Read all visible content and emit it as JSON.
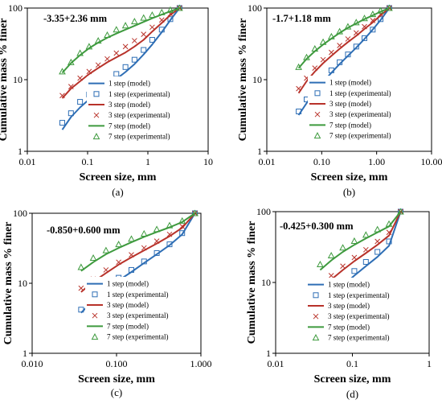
{
  "colors": {
    "one_step": "#2E6EB5",
    "three_step": "#B8322A",
    "seven_step": "#3E9A3E"
  },
  "legend": [
    {
      "label": "1 step (model)",
      "kind": "line",
      "series": "one_step"
    },
    {
      "label": "1 step (experimental)",
      "kind": "square",
      "series": "one_step"
    },
    {
      "label": "3 step (model)",
      "kind": "line",
      "series": "three_step"
    },
    {
      "label": "3 step (experimental)",
      "kind": "cross",
      "series": "three_step"
    },
    {
      "label": "7 step (model)",
      "kind": "line",
      "series": "seven_step"
    },
    {
      "label": "7 step (experimental)",
      "kind": "triangle",
      "series": "seven_step"
    }
  ],
  "chart_data": [
    {
      "type": "line",
      "panel": "(a)",
      "title": "-3.35+2.36 mm",
      "xlabel": "Screen size, mm",
      "ylabel": "Cumulative mass % finer",
      "xscale": "log",
      "yscale": "log",
      "xlim": [
        0.01,
        10
      ],
      "ylim": [
        1,
        100
      ],
      "xticks": [
        "0.01",
        "0.1",
        "1",
        "10"
      ],
      "yticks": [
        "1",
        "10",
        "100"
      ],
      "grid": false,
      "legend_position": "bottom-right",
      "series": [
        {
          "name": "1 step (model)",
          "kind": "model",
          "color_key": "one_step",
          "x": [
            0.038,
            0.053,
            0.075,
            0.106,
            0.15,
            0.212,
            0.3,
            0.425,
            0.6,
            0.85,
            1.18,
            1.7,
            2.36,
            3.35
          ],
          "y": [
            2.0,
            3.0,
            4.1,
            5.3,
            6.7,
            8.2,
            10.2,
            12.8,
            16.5,
            22.5,
            31.0,
            46.0,
            68.0,
            100
          ]
        },
        {
          "name": "1 step (experimental)",
          "kind": "square",
          "color_key": "one_step",
          "x": [
            0.038,
            0.053,
            0.075,
            0.106,
            0.15,
            0.212,
            0.3,
            0.425,
            0.6,
            0.85,
            1.18,
            1.7,
            2.36,
            3.35
          ],
          "y": [
            2.5,
            3.4,
            4.9,
            6.2,
            7.6,
            9.5,
            12.0,
            15.0,
            19.0,
            26.0,
            36.0,
            50.0,
            70.0,
            100
          ]
        },
        {
          "name": "3 step (model)",
          "kind": "model",
          "color_key": "three_step",
          "x": [
            0.038,
            0.053,
            0.075,
            0.106,
            0.15,
            0.212,
            0.3,
            0.425,
            0.6,
            0.85,
            1.18,
            1.7,
            2.36,
            3.35
          ],
          "y": [
            5.5,
            7.5,
            9.5,
            12.0,
            14.5,
            17.5,
            20.5,
            24.0,
            29.0,
            36.0,
            47.0,
            62.0,
            80.0,
            100
          ]
        },
        {
          "name": "3 step (experimental)",
          "kind": "cross",
          "color_key": "three_step",
          "x": [
            0.038,
            0.053,
            0.075,
            0.106,
            0.15,
            0.212,
            0.3,
            0.425,
            0.6,
            0.85,
            1.18,
            1.7,
            2.36,
            3.35
          ],
          "y": [
            6.0,
            8.0,
            10.5,
            13.0,
            16.0,
            19.5,
            23.5,
            29.0,
            35.0,
            43.0,
            54.0,
            68.0,
            83.0,
            100
          ]
        },
        {
          "name": "7 step (model)",
          "kind": "model",
          "color_key": "seven_step",
          "x": [
            0.038,
            0.053,
            0.075,
            0.106,
            0.15,
            0.212,
            0.3,
            0.425,
            0.6,
            0.85,
            1.18,
            1.7,
            2.36,
            3.35
          ],
          "y": [
            12.5,
            17.0,
            22.0,
            27.5,
            33.0,
            38.5,
            44.0,
            50.0,
            56.5,
            64.0,
            72.0,
            81.0,
            90.0,
            100
          ]
        },
        {
          "name": "7 step (experimental)",
          "kind": "triangle",
          "color_key": "seven_step",
          "x": [
            0.038,
            0.053,
            0.075,
            0.106,
            0.15,
            0.212,
            0.3,
            0.425,
            0.6,
            0.85,
            1.18,
            1.7,
            2.36,
            3.35
          ],
          "y": [
            13.0,
            17.5,
            23.5,
            29.0,
            35.0,
            42.0,
            50.0,
            57.0,
            65.0,
            73.0,
            80.0,
            87.0,
            94.0,
            100
          ]
        }
      ]
    },
    {
      "type": "line",
      "panel": "(b)",
      "title": "-1.7+1.18 mm",
      "xlabel": "Screen size, mm",
      "ylabel": "Cumulative mass % finer",
      "xscale": "log",
      "yscale": "log",
      "xlim": [
        0.01,
        10
      ],
      "ylim": [
        1,
        100
      ],
      "xticks": [
        "0.01",
        "0.10",
        "1.00",
        "10.00"
      ],
      "yticks": [
        "1",
        "10",
        "100"
      ],
      "grid": false,
      "legend_position": "bottom-right",
      "series": [
        {
          "name": "1 step (model)",
          "kind": "model",
          "color_key": "one_step",
          "x": [
            0.038,
            0.053,
            0.075,
            0.106,
            0.15,
            0.212,
            0.3,
            0.425,
            0.6,
            0.85,
            1.18,
            1.7
          ],
          "y": [
            3.2,
            4.7,
            6.8,
            9.3,
            12.5,
            16.5,
            21.5,
            28.0,
            37.0,
            50.0,
            68.0,
            100
          ]
        },
        {
          "name": "1 step (experimental)",
          "kind": "square",
          "color_key": "one_step",
          "x": [
            0.038,
            0.053,
            0.075,
            0.106,
            0.15,
            0.212,
            0.3,
            0.425,
            0.6,
            0.85,
            1.18,
            1.7
          ],
          "y": [
            3.6,
            5.3,
            7.5,
            10.0,
            13.5,
            17.5,
            22.5,
            29.0,
            38.0,
            50.0,
            70.0,
            100
          ]
        },
        {
          "name": "3 step (model)",
          "kind": "model",
          "color_key": "three_step",
          "x": [
            0.038,
            0.053,
            0.075,
            0.106,
            0.15,
            0.212,
            0.3,
            0.425,
            0.6,
            0.85,
            1.18,
            1.7
          ],
          "y": [
            6.5,
            9.5,
            13.0,
            17.0,
            21.5,
            27.0,
            33.5,
            41.0,
            51.0,
            63.0,
            79.0,
            100
          ]
        },
        {
          "name": "3 step (experimental)",
          "kind": "cross",
          "color_key": "three_step",
          "x": [
            0.038,
            0.053,
            0.075,
            0.106,
            0.15,
            0.212,
            0.3,
            0.425,
            0.6,
            0.85,
            1.18,
            1.7
          ],
          "y": [
            7.5,
            10.5,
            14.5,
            19.0,
            24.0,
            30.0,
            37.0,
            45.0,
            55.0,
            67.0,
            82.0,
            100
          ]
        },
        {
          "name": "7 step (model)",
          "kind": "model",
          "color_key": "seven_step",
          "x": [
            0.038,
            0.053,
            0.075,
            0.106,
            0.15,
            0.212,
            0.3,
            0.425,
            0.6,
            0.85,
            1.18,
            1.7
          ],
          "y": [
            14.5,
            19.5,
            25.0,
            31.0,
            37.5,
            45.0,
            53.0,
            61.0,
            70.0,
            79.0,
            89.0,
            100
          ]
        },
        {
          "name": "7 step (experimental)",
          "kind": "triangle",
          "color_key": "seven_step",
          "x": [
            0.038,
            0.053,
            0.075,
            0.106,
            0.15,
            0.212,
            0.3,
            0.425,
            0.6,
            0.85,
            1.18,
            1.7
          ],
          "y": [
            15.0,
            20.5,
            27.0,
            33.5,
            40.0,
            47.0,
            55.0,
            63.0,
            72.0,
            82.0,
            92.0,
            100
          ]
        }
      ]
    },
    {
      "type": "line",
      "panel": "(c)",
      "title": "-0.850+0.600 mm",
      "xlabel": "Screen size, mm",
      "ylabel": "Cumulative mass % finer",
      "xscale": "log",
      "yscale": "log",
      "xlim": [
        0.01,
        1
      ],
      "ylim": [
        1,
        100
      ],
      "xticks": [
        "0.010",
        "0.100",
        "1.000"
      ],
      "yticks": [
        "1",
        "10",
        "100"
      ],
      "grid": false,
      "legend_position": "bottom-right",
      "series": [
        {
          "name": "1 step (model)",
          "kind": "model",
          "color_key": "one_step",
          "x": [
            0.038,
            0.053,
            0.075,
            0.106,
            0.15,
            0.212,
            0.3,
            0.425,
            0.6,
            0.85
          ],
          "y": [
            3.8,
            5.6,
            8.0,
            11.0,
            14.5,
            19.5,
            26.0,
            35.0,
            50.0,
            100
          ]
        },
        {
          "name": "1 step (experimental)",
          "kind": "square",
          "color_key": "one_step",
          "x": [
            0.038,
            0.053,
            0.075,
            0.106,
            0.15,
            0.212,
            0.3,
            0.425,
            0.6,
            0.85
          ],
          "y": [
            4.2,
            6.2,
            8.8,
            12.0,
            15.5,
            20.5,
            27.0,
            36.0,
            52.0,
            100
          ]
        },
        {
          "name": "3 step (model)",
          "kind": "model",
          "color_key": "three_step",
          "x": [
            0.038,
            0.053,
            0.075,
            0.106,
            0.15,
            0.212,
            0.3,
            0.425,
            0.6,
            0.85
          ],
          "y": [
            7.5,
            10.5,
            14.0,
            18.5,
            23.5,
            29.5,
            37.0,
            47.0,
            62.0,
            100
          ]
        },
        {
          "name": "3 step (experimental)",
          "kind": "cross",
          "color_key": "three_step",
          "x": [
            0.038,
            0.053,
            0.075,
            0.106,
            0.15,
            0.212,
            0.3,
            0.425,
            0.6,
            0.85
          ],
          "y": [
            8.5,
            11.5,
            15.5,
            20.0,
            25.5,
            32.0,
            40.0,
            50.0,
            65.0,
            100
          ]
        },
        {
          "name": "7 step (model)",
          "kind": "model",
          "color_key": "seven_step",
          "x": [
            0.038,
            0.053,
            0.075,
            0.106,
            0.15,
            0.212,
            0.3,
            0.425,
            0.6,
            0.85
          ],
          "y": [
            15.0,
            20.0,
            26.0,
            32.0,
            38.5,
            46.0,
            54.0,
            63.0,
            75.0,
            100
          ]
        },
        {
          "name": "7 step (experimental)",
          "kind": "triangle",
          "color_key": "seven_step",
          "x": [
            0.038,
            0.053,
            0.075,
            0.106,
            0.15,
            0.212,
            0.3,
            0.425,
            0.6,
            0.85
          ],
          "y": [
            17.0,
            23.0,
            29.5,
            36.0,
            43.0,
            51.0,
            59.0,
            67.0,
            78.0,
            100
          ]
        }
      ]
    },
    {
      "type": "line",
      "panel": "(d)",
      "title": "-0.425+0.300 mm",
      "xlabel": "Screen size, mm",
      "ylabel": "Cumulative mass % finer",
      "xscale": "log",
      "yscale": "log",
      "xlim": [
        0.01,
        1
      ],
      "ylim": [
        1,
        100
      ],
      "xticks": [
        "0.01",
        "0.1",
        "1"
      ],
      "yticks": [
        "1",
        "10",
        "100"
      ],
      "grid": false,
      "legend_position": "bottom-right",
      "series": [
        {
          "name": "1 step (model)",
          "kind": "model",
          "color_key": "one_step",
          "x": [
            0.038,
            0.053,
            0.075,
            0.106,
            0.15,
            0.212,
            0.3,
            0.425
          ],
          "y": [
            4.0,
            6.2,
            9.0,
            12.5,
            17.0,
            23.0,
            33.0,
            100
          ]
        },
        {
          "name": "1 step (experimental)",
          "kind": "square",
          "color_key": "one_step",
          "x": [
            0.038,
            0.053,
            0.075,
            0.106,
            0.15,
            0.212,
            0.3,
            0.425
          ],
          "y": [
            5.0,
            7.2,
            10.5,
            14.5,
            19.5,
            27.0,
            38.0,
            100
          ]
        },
        {
          "name": "3 step (model)",
          "kind": "model",
          "color_key": "three_step",
          "x": [
            0.038,
            0.053,
            0.075,
            0.106,
            0.15,
            0.212,
            0.3,
            0.425
          ],
          "y": [
            7.5,
            11.0,
            15.0,
            20.0,
            26.0,
            34.0,
            46.0,
            100
          ]
        },
        {
          "name": "3 step (experimental)",
          "kind": "cross",
          "color_key": "three_step",
          "x": [
            0.038,
            0.053,
            0.075,
            0.106,
            0.15,
            0.212,
            0.3,
            0.425
          ],
          "y": [
            9.0,
            12.5,
            17.0,
            22.5,
            29.0,
            38.0,
            51.0,
            100
          ]
        },
        {
          "name": "7 step (model)",
          "kind": "model",
          "color_key": "seven_step",
          "x": [
            0.038,
            0.053,
            0.075,
            0.106,
            0.15,
            0.212,
            0.3,
            0.425
          ],
          "y": [
            15.0,
            20.5,
            27.0,
            34.0,
            42.0,
            51.0,
            62.0,
            100
          ]
        },
        {
          "name": "7 step (experimental)",
          "kind": "triangle",
          "color_key": "seven_step",
          "x": [
            0.038,
            0.053,
            0.075,
            0.106,
            0.15,
            0.212,
            0.3,
            0.425
          ],
          "y": [
            18.0,
            24.0,
            31.0,
            38.5,
            47.0,
            56.0,
            67.0,
            100
          ]
        }
      ]
    }
  ]
}
